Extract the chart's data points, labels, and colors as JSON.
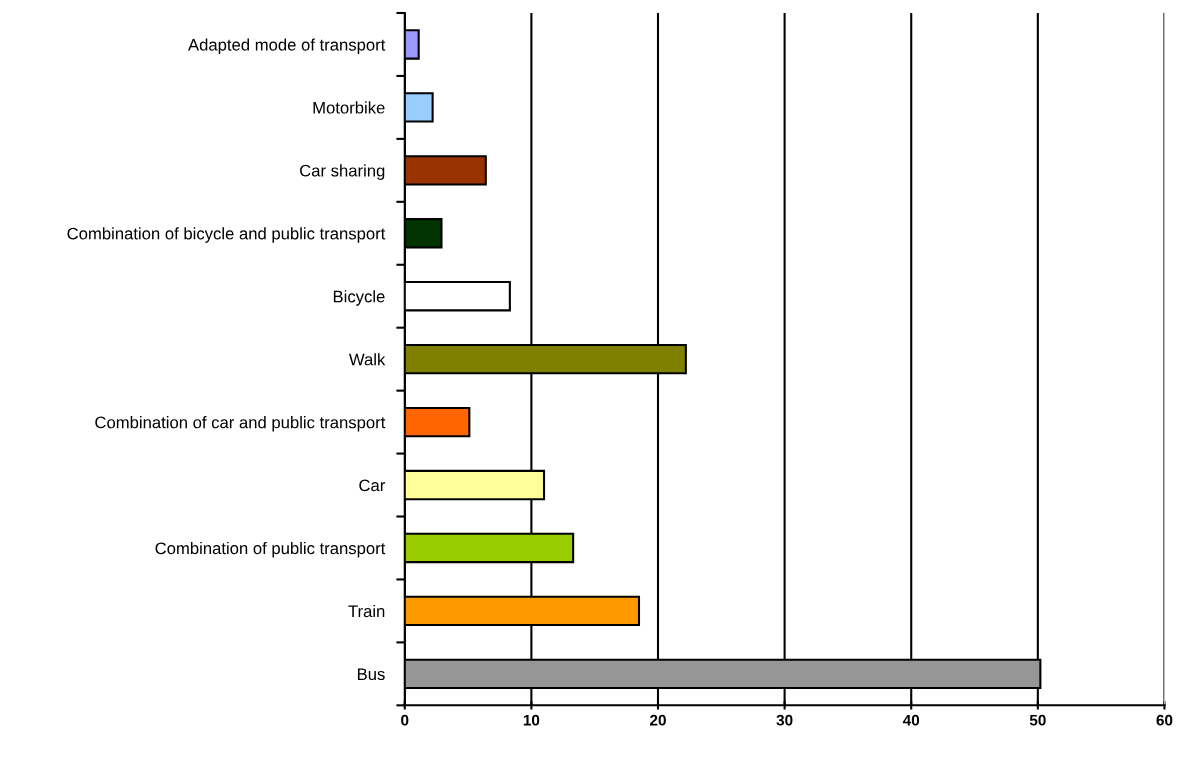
{
  "chart_data": {
    "type": "bar",
    "orientation": "horizontal",
    "categories": [
      "Adapted mode of transport",
      "Motorbike",
      "Car sharing",
      "Combination of bicycle and public transport",
      "Bicycle",
      "Walk",
      "Combination of car and public transport",
      "Car",
      "Combination of public transport",
      "Train",
      "Bus"
    ],
    "values": [
      1.1,
      2.2,
      6.4,
      2.9,
      8.3,
      22.2,
      5.1,
      11.0,
      13.3,
      18.5,
      50.2
    ],
    "colors": [
      "#9999ff",
      "#99ccff",
      "#993300",
      "#003300",
      "#ffffff",
      "#808000",
      "#ff6600",
      "#ffff99",
      "#99cc00",
      "#ff9900",
      "#969696"
    ],
    "xlim": [
      0,
      60
    ],
    "xticks": [
      0,
      10,
      20,
      30,
      40,
      50,
      60
    ],
    "grid": "x",
    "legend": false
  }
}
